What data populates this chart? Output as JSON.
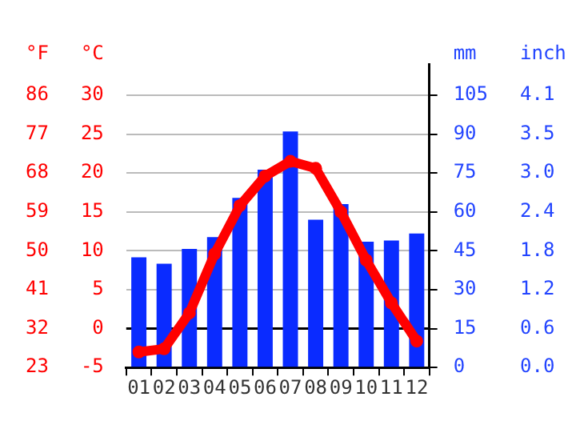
{
  "chart_data": {
    "type": "bar",
    "categories": [
      "01",
      "02",
      "03",
      "04",
      "05",
      "06",
      "07",
      "08",
      "09",
      "10",
      "11",
      "12"
    ],
    "ylabel": "°C",
    "y2label": "mm",
    "y3label": "°F",
    "annotations": [
      "inch",
      "0.0",
      "0.6",
      "1.2",
      "1.8",
      "2.4",
      "3.0",
      "3.5",
      "4.1"
    ],
    "series": [
      {
        "axis": "y2",
        "color": "#0a2bff",
        "values": [
          42.5,
          40,
          45.7,
          50.3,
          65.4,
          76.3,
          91,
          57,
          63,
          48.5,
          49,
          51.7
        ]
      },
      {
        "type": "line",
        "axis": "y",
        "color": "#ff0000",
        "values": [
          -3.0,
          -2.6,
          2.0,
          9.6,
          15.8,
          19.6,
          21.5,
          20.6,
          15.0,
          8.8,
          3.3,
          -1.6
        ]
      }
    ],
    "ylim": [
      -5,
      34
    ],
    "yticks": [
      -5,
      0,
      5,
      10,
      15,
      20,
      25,
      30
    ],
    "y2lim": [
      0,
      117
    ],
    "y2ticks": [
      0,
      15,
      30,
      45,
      60,
      75,
      90,
      105
    ],
    "y3lim": [
      23,
      93.2
    ],
    "y3ticks": [
      23,
      32,
      41,
      50,
      59,
      68,
      77,
      86
    ],
    "ref_lines": [
      {
        "axis": "y",
        "value": 0,
        "color": "#000000"
      }
    ],
    "grid": "y",
    "legend": false,
    "marker": "circle",
    "line_style": "solid"
  }
}
